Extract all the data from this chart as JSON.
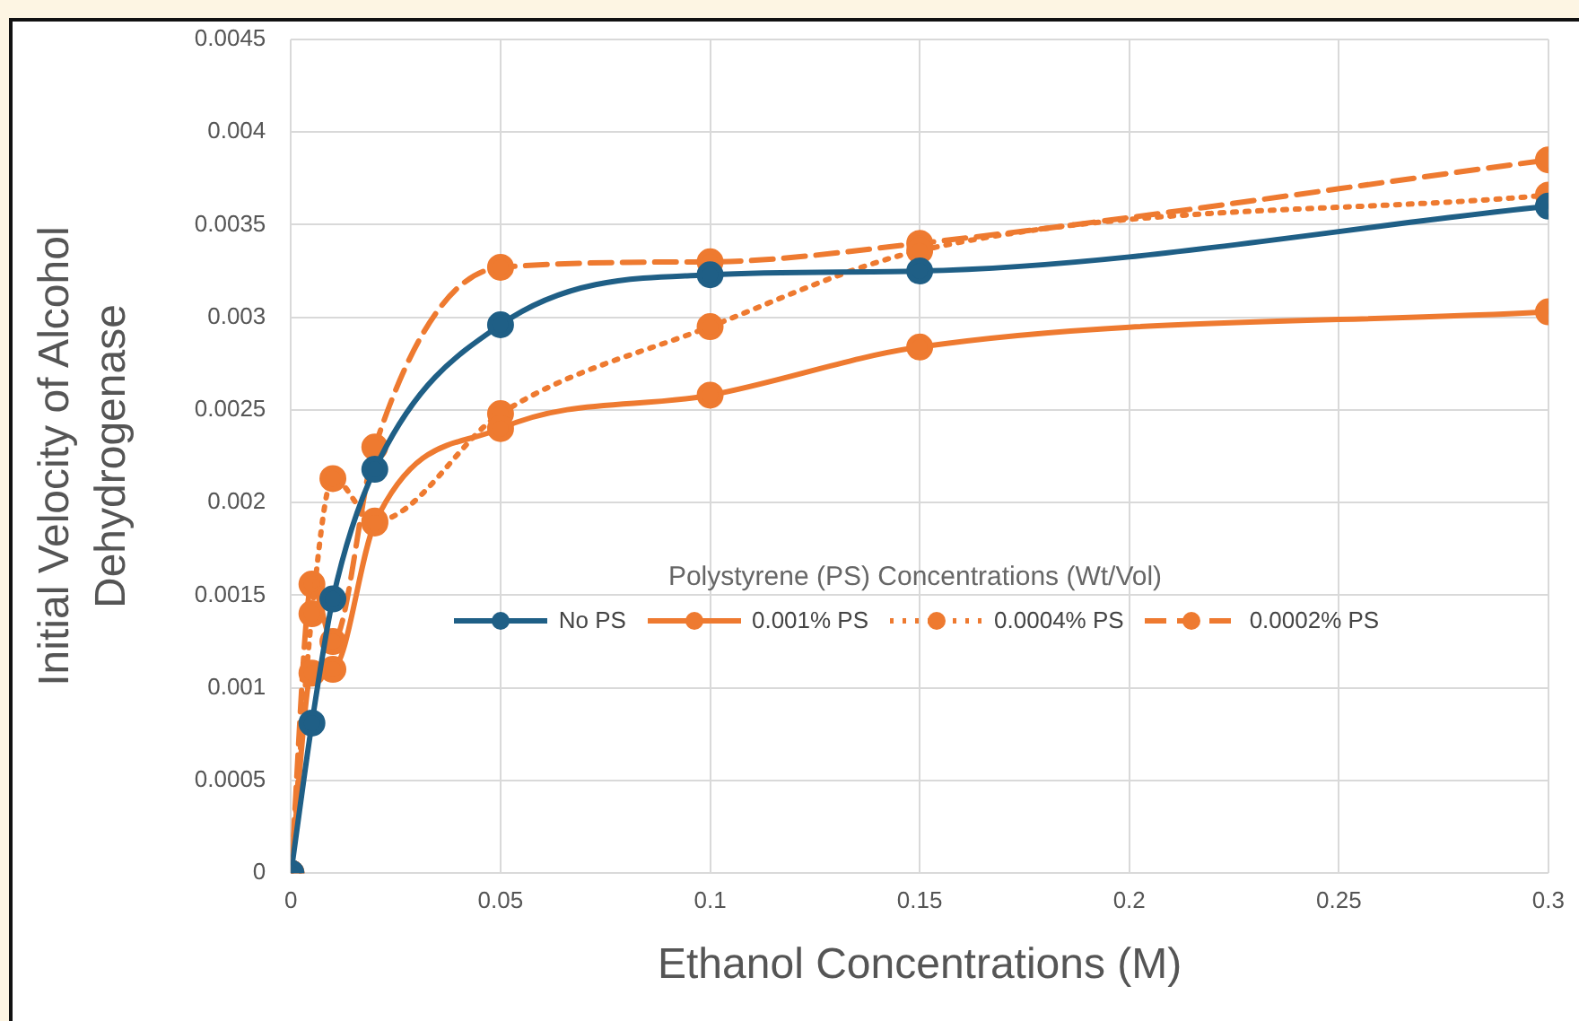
{
  "chart_data": {
    "type": "line",
    "xlabel": "Ethanol Concentrations (M)",
    "ylabel": "Initial Velocity of Alcohol\nDehydrogenase",
    "legend_title": "Polystyrene (PS) Concentrations (Wt/Vol)",
    "legend": "center",
    "grid": true,
    "marker": "circle",
    "x": [
      0,
      0.005,
      0.01,
      0.02,
      0.05,
      0.1,
      0.15,
      0.3
    ],
    "xlim": [
      0,
      0.3
    ],
    "xticks": [
      0,
      0.05,
      0.1,
      0.15,
      0.2,
      0.25,
      0.3
    ],
    "ylim": [
      0,
      0.0045
    ],
    "yticks": [
      0,
      0.0005,
      0.001,
      0.0015,
      0.002,
      0.0025,
      0.003,
      0.0035,
      0.004,
      0.0045
    ],
    "series": [
      {
        "name": "No PS",
        "color": "#1f5f86",
        "line_style": "solid",
        "values": [
          0,
          0.00081,
          0.00148,
          0.00218,
          0.00296,
          0.00323,
          0.00325,
          0.0036
        ]
      },
      {
        "name": "0.001% PS",
        "color": "#ee7a30",
        "line_style": "solid",
        "values": [
          0,
          0.00108,
          0.0011,
          0.00189,
          0.0024,
          0.00258,
          0.00284,
          0.00303
        ]
      },
      {
        "name": "0.0004% PS",
        "color": "#ee7a30",
        "line_style": "dotted",
        "values": [
          0,
          0.0014,
          0.00213,
          0.0019,
          0.00248,
          0.00295,
          0.00336,
          0.00366
        ]
      },
      {
        "name": "0.0002% PS",
        "color": "#ee7a30",
        "line_style": "dashed",
        "values": [
          0,
          0.00156,
          0.00125,
          0.0023,
          0.00327,
          0.0033,
          0.0034,
          0.00385
        ]
      }
    ]
  }
}
